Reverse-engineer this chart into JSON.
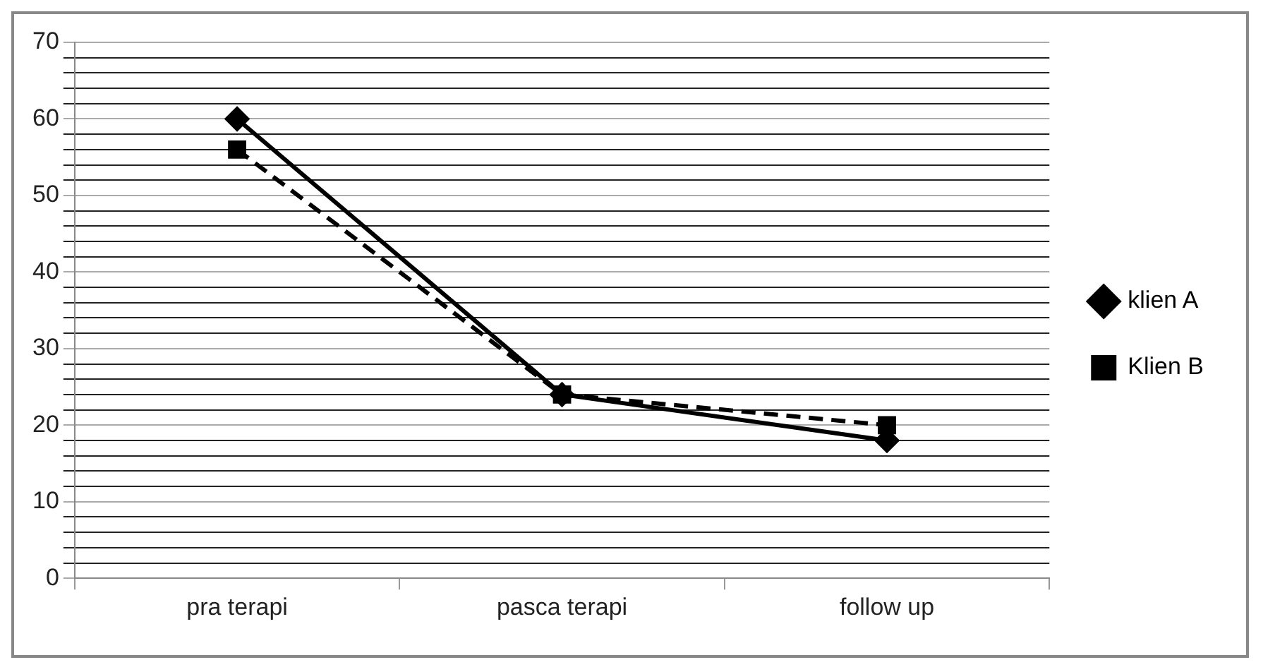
{
  "chart_data": {
    "type": "line",
    "categories": [
      "pra terapi",
      "pasca terapi",
      "follow up"
    ],
    "series": [
      {
        "name": "klien A",
        "color": "#000000",
        "values": [
          60,
          24,
          18
        ],
        "marker": "diamond",
        "line_style": "solid"
      },
      {
        "name": "Klien B",
        "color": "#000000",
        "values": [
          56,
          24,
          20
        ],
        "marker": "square",
        "line_style": "dashed"
      }
    ],
    "ylim": [
      0,
      70
    ],
    "yticks": [
      0,
      {
        "value": 2,
        "label": null
      },
      {
        "value": 4,
        "label": null
      },
      {
        "value": 6,
        "label": null
      },
      {
        "value": 8,
        "label": null
      },
      10,
      {
        "value": 12,
        "label": null
      },
      {
        "value": 14,
        "label": null
      },
      {
        "value": 16,
        "label": null
      },
      {
        "value": 18,
        "label": null
      },
      20,
      {
        "value": 22,
        "label": null
      },
      {
        "value": 24,
        "label": null
      },
      {
        "value": 26,
        "label": null
      },
      {
        "value": 28,
        "label": null
      },
      30,
      {
        "value": 32,
        "label": null
      },
      {
        "value": 34,
        "label": null
      },
      {
        "value": 36,
        "label": null
      },
      {
        "value": 38,
        "label": null
      },
      40,
      {
        "value": 42,
        "label": null
      },
      {
        "value": 44,
        "label": null
      },
      {
        "value": 46,
        "label": null
      },
      {
        "value": 48,
        "label": null
      },
      50,
      {
        "value": 52,
        "label": null
      },
      {
        "value": 54,
        "label": null
      },
      {
        "value": 56,
        "label": null
      },
      {
        "value": 58,
        "label": null
      },
      60,
      {
        "value": 62,
        "label": null
      },
      {
        "value": 64,
        "label": null
      },
      {
        "value": 66,
        "label": null
      },
      {
        "value": 68,
        "label": null
      },
      70
    ],
    "grid": "y",
    "legend": "right"
  }
}
